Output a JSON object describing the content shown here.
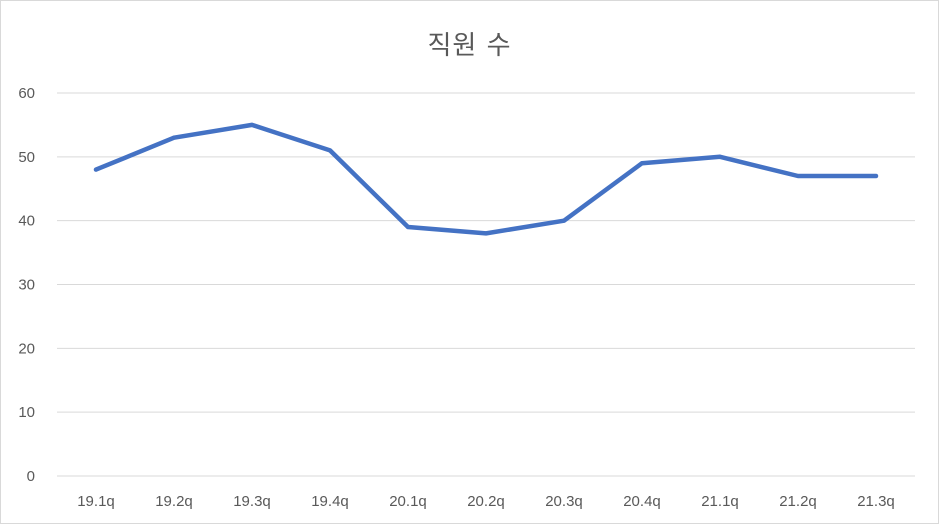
{
  "chart_data": {
    "type": "line",
    "title": "직원 수",
    "xlabel": "",
    "ylabel": "",
    "categories": [
      "19.1q",
      "19.2q",
      "19.3q",
      "19.4q",
      "20.1q",
      "20.2q",
      "20.3q",
      "20.4q",
      "21.1q",
      "21.2q",
      "21.3q"
    ],
    "series": [
      {
        "values": [
          48,
          53,
          55,
          51,
          39,
          38,
          40,
          49,
          50,
          47,
          47
        ],
        "color": "#4472c4"
      }
    ],
    "ylim": [
      0,
      60
    ],
    "yticks": [
      0,
      10,
      20,
      30,
      40,
      50,
      60
    ],
    "grid": true,
    "legend": "none"
  }
}
